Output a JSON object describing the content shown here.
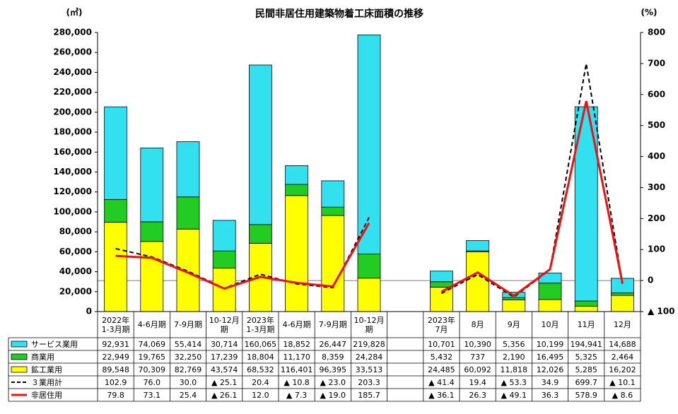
{
  "chart_data": {
    "type": "bar-line",
    "title": "民間非居住用建築物着工床面積の推移",
    "y_label": "(㎡)",
    "y2_label": "(%)",
    "categories": [
      "2022年\n1-3月期",
      "4-6月期",
      "7-9月期",
      "10-12月\n期",
      "2023年\n1-3月期",
      "4-6月期",
      "7-9月期",
      "10-12月\n期",
      null,
      "2023年\n7月",
      "8月",
      "9月",
      "10月",
      "11月",
      "12月"
    ],
    "ylim": [
      0,
      280000
    ],
    "yticks": [
      {
        "value": 0,
        "label": "0"
      },
      {
        "value": 20000,
        "label": "20,000"
      },
      {
        "value": 40000,
        "label": "40,000"
      },
      {
        "value": 60000,
        "label": "60,000"
      },
      {
        "value": 80000,
        "label": "80,000"
      },
      {
        "value": 100000,
        "label": "100,000"
      },
      {
        "value": 120000,
        "label": "120,000"
      },
      {
        "value": 140000,
        "label": "140,000"
      },
      {
        "value": 160000,
        "label": "160,000"
      },
      {
        "value": 180000,
        "label": "180,000"
      },
      {
        "value": 200000,
        "label": "200,000"
      },
      {
        "value": 220000,
        "label": "220,000"
      },
      {
        "value": 240000,
        "label": "240,000"
      },
      {
        "value": 260000,
        "label": "260,000"
      },
      {
        "value": 280000,
        "label": "280,000"
      }
    ],
    "y2lim": [
      -100,
      800
    ],
    "y2ticks": [
      {
        "value": -100,
        "label": "▲ 100"
      },
      0,
      100,
      200,
      300,
      400,
      500,
      600,
      700,
      800
    ],
    "series": [
      {
        "name": "サービス業用",
        "kind": "bar",
        "color": "#33e0f0",
        "values": [
          92931,
          74069,
          55414,
          30714,
          160065,
          18852,
          26447,
          219828,
          null,
          10701,
          10390,
          5356,
          10199,
          194941,
          14688
        ],
        "value_labels": [
          "92,931",
          "74,069",
          "55,414",
          "30,714",
          "160,065",
          "18,852",
          "26,447",
          "219,828",
          null,
          "10,701",
          "10,390",
          "5,356",
          "10,199",
          "194,941",
          "14,688"
        ]
      },
      {
        "name": "商業用",
        "kind": "bar",
        "color": "#22cc22",
        "values": [
          22949,
          19765,
          32250,
          17239,
          18804,
          11170,
          8359,
          24284,
          null,
          5432,
          737,
          2190,
          16495,
          5325,
          2464
        ],
        "value_labels": [
          "22,949",
          "19,765",
          "32,250",
          "17,239",
          "18,804",
          "11,170",
          "8,359",
          "24,284",
          null,
          "5,432",
          "737",
          "2,190",
          "16,495",
          "5,325",
          "2,464"
        ]
      },
      {
        "name": "鉱工業用",
        "kind": "bar",
        "color": "#ffff00",
        "values": [
          89548,
          70309,
          82769,
          43574,
          68532,
          116401,
          96395,
          33513,
          null,
          24485,
          60092,
          11818,
          12026,
          5285,
          16202
        ],
        "value_labels": [
          "89,548",
          "70,309",
          "82,769",
          "43,574",
          "68,532",
          "116,401",
          "96,395",
          "33,513",
          null,
          "24,485",
          "60,092",
          "11,818",
          "12,026",
          "5,285",
          "16,202"
        ]
      },
      {
        "name": "３業用計",
        "kind": "line",
        "axis": "y2",
        "color": "#000000",
        "dashed": true,
        "values": [
          102.9,
          76.0,
          30.0,
          -25.1,
          20.4,
          -10.8,
          -23.0,
          203.3,
          null,
          -41.4,
          19.4,
          -53.3,
          34.9,
          699.7,
          -10.1
        ],
        "value_labels": [
          "102.9",
          "76.0",
          "30.0",
          "▲ 25.1",
          "20.4",
          "▲ 10.8",
          "▲ 23.0",
          "203.3",
          null,
          "▲ 41.4",
          "19.4",
          "▲ 53.3",
          "34.9",
          "699.7",
          "▲ 10.1"
        ]
      },
      {
        "name": "非居住用",
        "kind": "line",
        "axis": "y2",
        "color": "#ee1111",
        "dashed": false,
        "values": [
          79.8,
          73.1,
          25.4,
          -26.1,
          12.0,
          -7.3,
          -19.0,
          185.7,
          null,
          -36.1,
          26.3,
          -49.1,
          36.3,
          578.9,
          -8.6
        ],
        "value_labels": [
          "79.8",
          "73.1",
          "25.4",
          "▲ 26.1",
          "12.0",
          "▲ 7.3",
          "▲ 19.0",
          "185.7",
          null,
          "▲ 36.1",
          "26.3",
          "▲ 49.1",
          "36.3",
          "578.9",
          "▲ 8.6"
        ]
      }
    ]
  }
}
